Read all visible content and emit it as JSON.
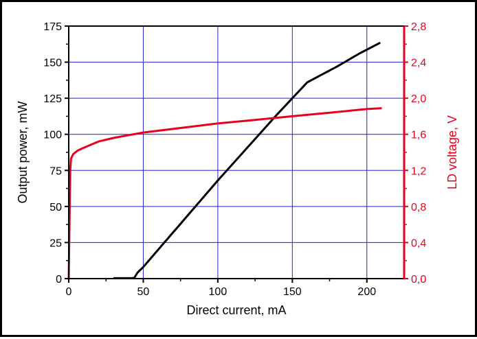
{
  "colors": {
    "black": "#000000",
    "red": "#e8001c",
    "grid": "#1f1fd6"
  },
  "chart_data": {
    "type": "line",
    "xlabel": "Direct current, mA",
    "ylabel": "Output power, mW",
    "y2label": "LD voltage, V",
    "xlim": [
      0,
      225
    ],
    "ylim": [
      0,
      175
    ],
    "y2lim": [
      0,
      2.8
    ],
    "grid": true,
    "xticks": [
      0,
      50,
      100,
      150,
      200
    ],
    "xtick_labels": [
      "0",
      "50",
      "100",
      "150",
      "200"
    ],
    "yticks": [
      0,
      25,
      50,
      75,
      100,
      125,
      150,
      175
    ],
    "ytick_labels": [
      "0",
      "25",
      "50",
      "75",
      "100",
      "125",
      "150",
      "175"
    ],
    "y2ticks": [
      0,
      0.4,
      0.8,
      1.2,
      1.6,
      2.0,
      2.4,
      2.8
    ],
    "y2tick_labels": [
      "0,0",
      "0,4",
      "0,8",
      "1,2",
      "1,6",
      "2,0",
      "2,4",
      "2,8"
    ],
    "series": [
      {
        "axis": "left",
        "color": "#000000",
        "points": [
          [
            30,
            0.3
          ],
          [
            42,
            0.3
          ],
          [
            44,
            0.5
          ],
          [
            46,
            4
          ],
          [
            50,
            8
          ],
          [
            60,
            20
          ],
          [
            80,
            44
          ],
          [
            100,
            68
          ],
          [
            120,
            91
          ],
          [
            140,
            114
          ],
          [
            160,
            136
          ],
          [
            180,
            147
          ],
          [
            195,
            156
          ],
          [
            209,
            163.5
          ]
        ]
      },
      {
        "axis": "right",
        "color": "#e8001c",
        "points": [
          [
            0,
            0.0
          ],
          [
            0.5,
            0.6
          ],
          [
            1,
            1.2
          ],
          [
            1.5,
            1.33
          ],
          [
            3,
            1.38
          ],
          [
            6,
            1.42
          ],
          [
            10,
            1.45
          ],
          [
            20,
            1.52
          ],
          [
            30,
            1.56
          ],
          [
            40,
            1.59
          ],
          [
            50,
            1.62
          ],
          [
            75,
            1.67
          ],
          [
            100,
            1.72
          ],
          [
            125,
            1.76
          ],
          [
            150,
            1.8
          ],
          [
            175,
            1.84
          ],
          [
            200,
            1.88
          ],
          [
            210,
            1.89
          ]
        ]
      }
    ]
  }
}
